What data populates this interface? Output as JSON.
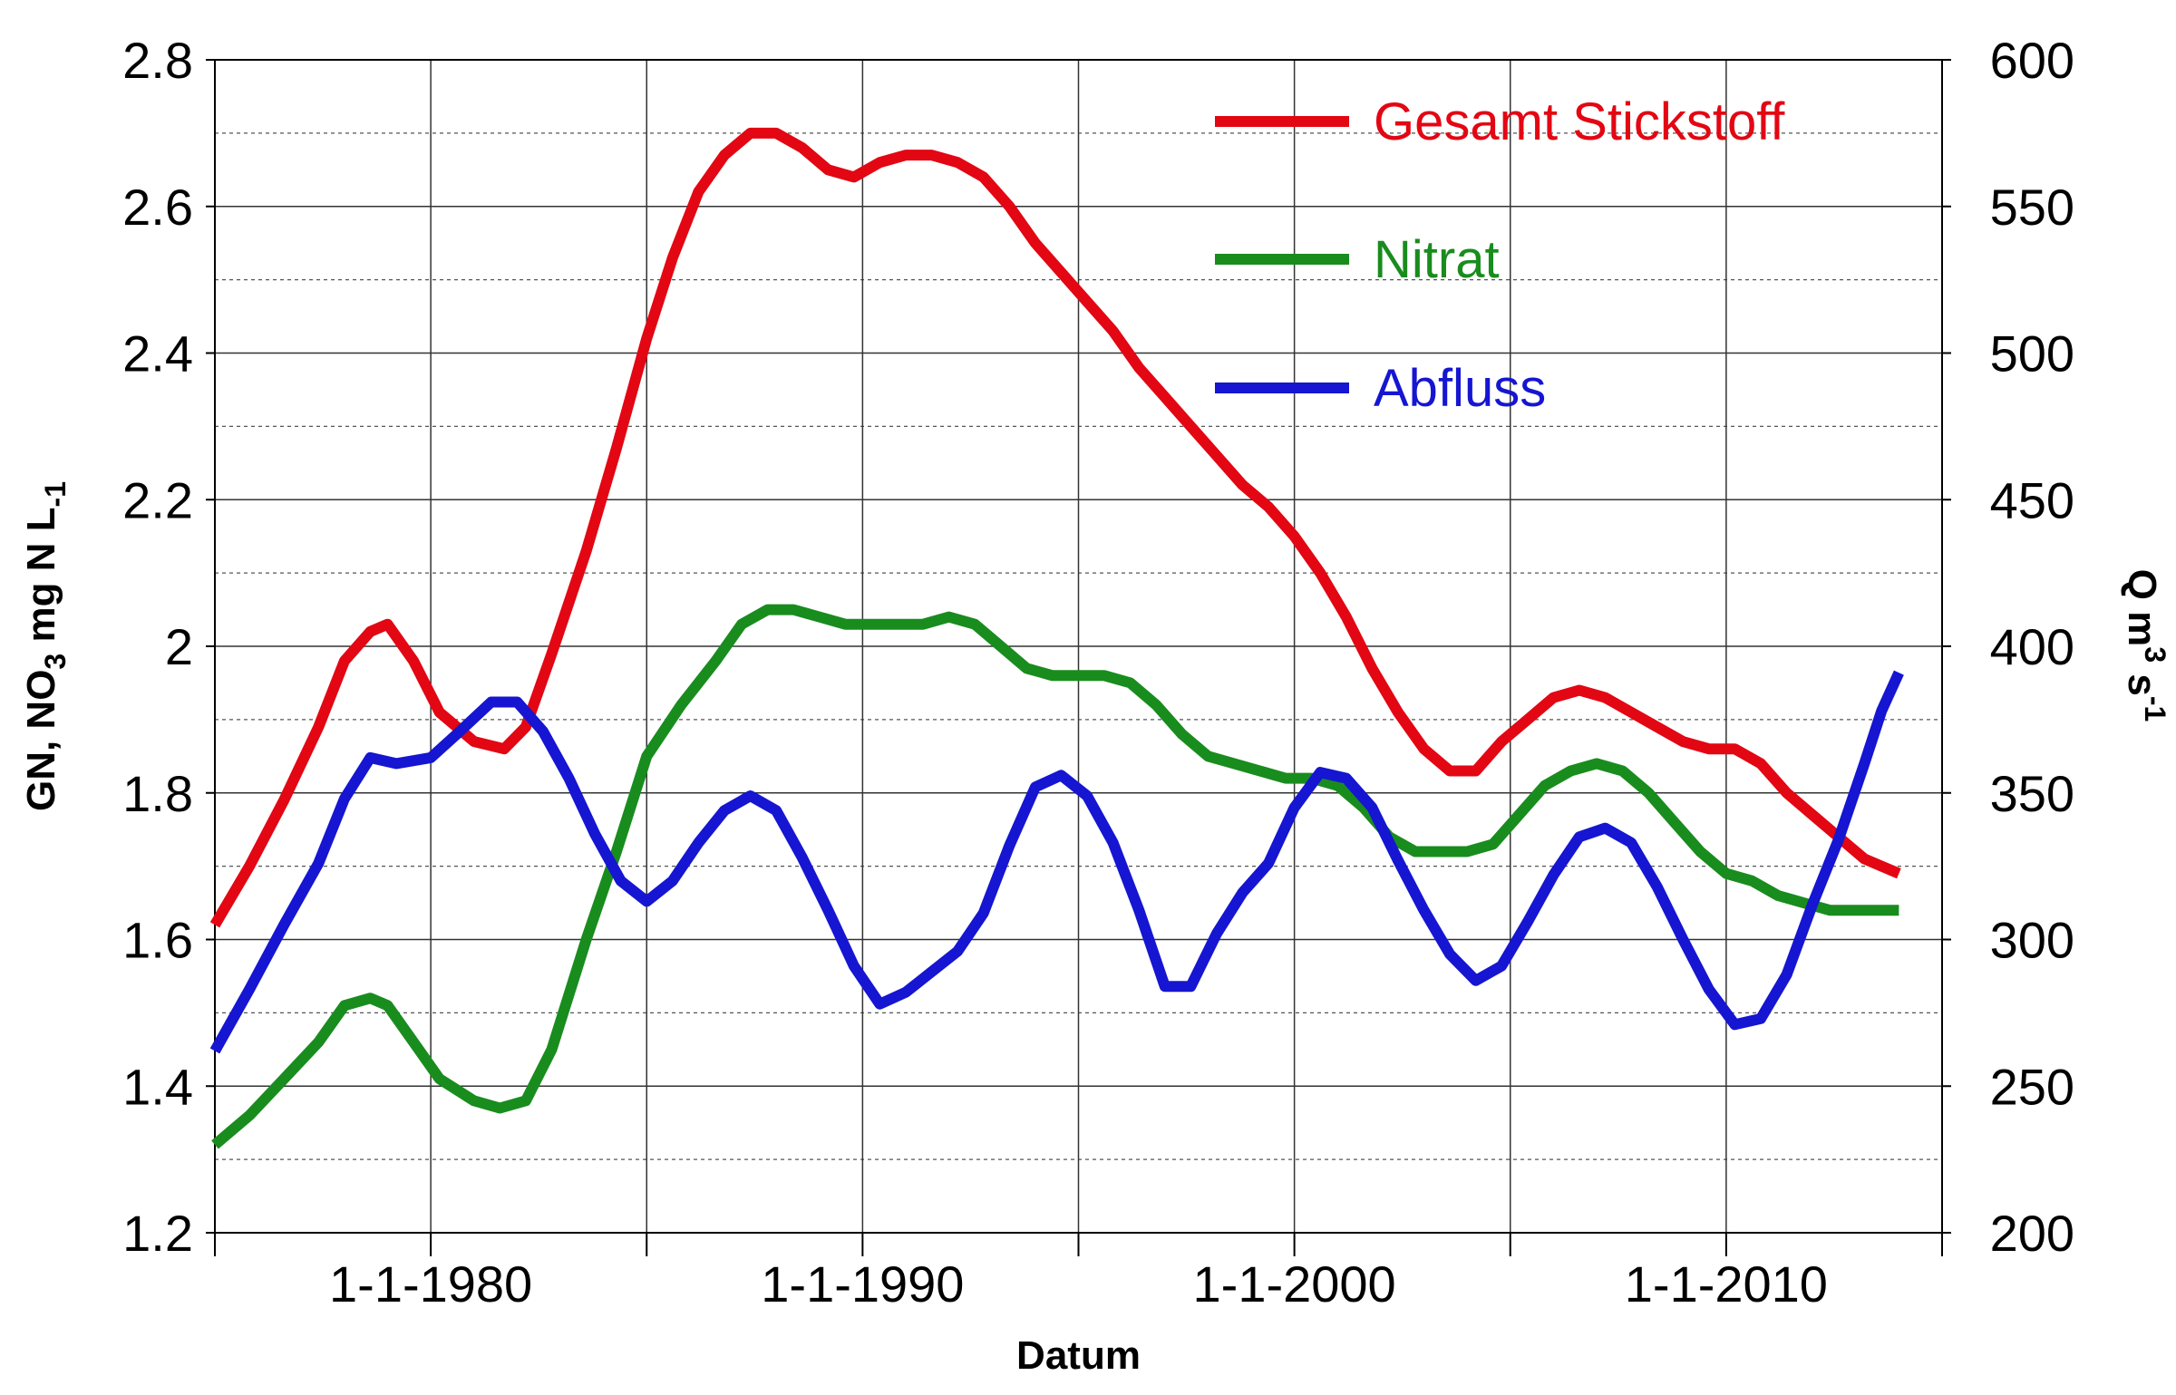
{
  "chart_data": {
    "type": "line",
    "xlabel": "Datum",
    "ylabel": {
      "main": "GN, NO",
      "sub1": "3",
      "mid": " mg N L",
      "sub2": "-1"
    },
    "y2label": {
      "main": "Q m",
      "sup1": "3",
      "mid": " s",
      "sup2": "-1"
    },
    "x_ticks": [
      "1-1-1980",
      "1-1-1990",
      "1-1-2000",
      "1-1-2010"
    ],
    "xlim": [
      1975,
      2015
    ],
    "x_major": [
      1975,
      1980,
      1985,
      1990,
      1995,
      2000,
      2005,
      2010,
      2015
    ],
    "ylim": [
      1.2,
      2.8
    ],
    "y_ticks": [
      "1.2",
      "1.4",
      "1.6",
      "1.8",
      "2",
      "2.2",
      "2.4",
      "2.6",
      "2.8"
    ],
    "y2lim": [
      200,
      600
    ],
    "y2_ticks": [
      "200",
      "250",
      "300",
      "350",
      "400",
      "450",
      "500",
      "550",
      "600"
    ],
    "grid": true,
    "legend_position": "top-right",
    "series": [
      {
        "name": "Gesamt Stickstoff",
        "color": "#e30613",
        "axis": "left",
        "x": [
          1975.0,
          1975.8,
          1976.6,
          1977.4,
          1978.0,
          1978.6,
          1979.0,
          1979.6,
          1980.2,
          1981.0,
          1981.7,
          1982.2,
          1982.8,
          1983.6,
          1984.3,
          1985.0,
          1985.6,
          1986.2,
          1986.8,
          1987.4,
          1988.0,
          1988.6,
          1989.2,
          1989.8,
          1990.4,
          1991.0,
          1991.6,
          1992.2,
          1992.8,
          1993.4,
          1994.0,
          1994.6,
          1995.2,
          1995.8,
          1996.4,
          1997.0,
          1997.6,
          1998.2,
          1998.8,
          1999.4,
          2000.0,
          2000.6,
          2001.2,
          2001.8,
          2002.4,
          2003.0,
          2003.6,
          2004.2,
          2004.8,
          2005.4,
          2006.0,
          2006.6,
          2007.2,
          2007.8,
          2008.4,
          2009.0,
          2009.6,
          2010.2,
          2010.8,
          2011.4,
          2012.0,
          2012.6,
          2013.2,
          2013.6,
          2014.0
        ],
        "y": [
          1.62,
          1.7,
          1.79,
          1.89,
          1.98,
          2.02,
          2.03,
          1.98,
          1.91,
          1.87,
          1.86,
          1.89,
          1.99,
          2.13,
          2.27,
          2.42,
          2.53,
          2.62,
          2.67,
          2.7,
          2.7,
          2.68,
          2.65,
          2.64,
          2.66,
          2.67,
          2.67,
          2.66,
          2.64,
          2.6,
          2.55,
          2.51,
          2.47,
          2.43,
          2.38,
          2.34,
          2.3,
          2.26,
          2.22,
          2.19,
          2.15,
          2.1,
          2.04,
          1.97,
          1.91,
          1.86,
          1.83,
          1.83,
          1.87,
          1.9,
          1.93,
          1.94,
          1.93,
          1.91,
          1.89,
          1.87,
          1.86,
          1.86,
          1.84,
          1.8,
          1.77,
          1.74,
          1.71,
          1.7,
          1.69
        ]
      },
      {
        "name": "Nitrat",
        "color": "#198c1e",
        "axis": "left",
        "x": [
          1975.0,
          1975.8,
          1976.6,
          1977.4,
          1978.0,
          1978.6,
          1979.0,
          1979.6,
          1980.2,
          1981.0,
          1981.6,
          1982.2,
          1982.8,
          1983.6,
          1984.3,
          1985.0,
          1985.8,
          1986.6,
          1987.2,
          1987.8,
          1988.4,
          1989.0,
          1989.6,
          1990.2,
          1990.8,
          1991.4,
          1992.0,
          1992.6,
          1993.2,
          1993.8,
          1994.4,
          1995.0,
          1995.6,
          1996.2,
          1996.8,
          1997.4,
          1998.0,
          1998.6,
          1999.2,
          1999.8,
          2000.4,
          2001.0,
          2001.6,
          2002.2,
          2002.8,
          2003.4,
          2004.0,
          2004.6,
          2005.2,
          2005.8,
          2006.4,
          2007.0,
          2007.6,
          2008.2,
          2008.8,
          2009.4,
          2010.0,
          2010.6,
          2011.2,
          2011.8,
          2012.4,
          2013.0,
          2013.6,
          2014.0
        ],
        "y": [
          1.32,
          1.36,
          1.41,
          1.46,
          1.51,
          1.52,
          1.51,
          1.46,
          1.41,
          1.38,
          1.37,
          1.38,
          1.45,
          1.6,
          1.72,
          1.85,
          1.92,
          1.98,
          2.03,
          2.05,
          2.05,
          2.04,
          2.03,
          2.03,
          2.03,
          2.03,
          2.04,
          2.03,
          2.0,
          1.97,
          1.96,
          1.96,
          1.96,
          1.95,
          1.92,
          1.88,
          1.85,
          1.84,
          1.83,
          1.82,
          1.82,
          1.81,
          1.78,
          1.74,
          1.72,
          1.72,
          1.72,
          1.73,
          1.77,
          1.81,
          1.83,
          1.84,
          1.83,
          1.8,
          1.76,
          1.72,
          1.69,
          1.68,
          1.66,
          1.65,
          1.64,
          1.64,
          1.64,
          1.64
        ]
      },
      {
        "name": "Abfluss",
        "color": "#1515d2",
        "axis": "right",
        "x": [
          1975.0,
          1975.8,
          1976.6,
          1977.4,
          1978.0,
          1978.6,
          1979.2,
          1980.0,
          1980.6,
          1981.4,
          1982.0,
          1982.6,
          1983.2,
          1983.8,
          1984.4,
          1985.0,
          1985.6,
          1986.2,
          1986.8,
          1987.4,
          1988.0,
          1988.6,
          1989.2,
          1989.8,
          1990.4,
          1991.0,
          1991.6,
          1992.2,
          1992.8,
          1993.4,
          1994.0,
          1994.6,
          1995.2,
          1995.8,
          1996.4,
          1997.0,
          1997.6,
          1998.2,
          1998.8,
          1999.4,
          2000.0,
          2000.6,
          2001.2,
          2001.8,
          2002.4,
          2003.0,
          2003.6,
          2004.2,
          2004.8,
          2005.4,
          2006.0,
          2006.6,
          2007.2,
          2007.8,
          2008.4,
          2009.0,
          2009.6,
          2010.2,
          2010.8,
          2011.4,
          2012.0,
          2012.6,
          2013.2,
          2013.6,
          2014.0
        ],
        "y": [
          262,
          283,
          305,
          326,
          348,
          362,
          360,
          362,
          370,
          381,
          381,
          371,
          355,
          336,
          320,
          313,
          320,
          333,
          344,
          349,
          344,
          328,
          310,
          291,
          278,
          282,
          289,
          296,
          309,
          332,
          352,
          356,
          349,
          333,
          310,
          284,
          284,
          302,
          316,
          326,
          345,
          357,
          355,
          345,
          327,
          310,
          295,
          286,
          291,
          306,
          322,
          335,
          338,
          333,
          318,
          300,
          283,
          271,
          273,
          288,
          312,
          334,
          360,
          378,
          391
        ]
      }
    ]
  }
}
